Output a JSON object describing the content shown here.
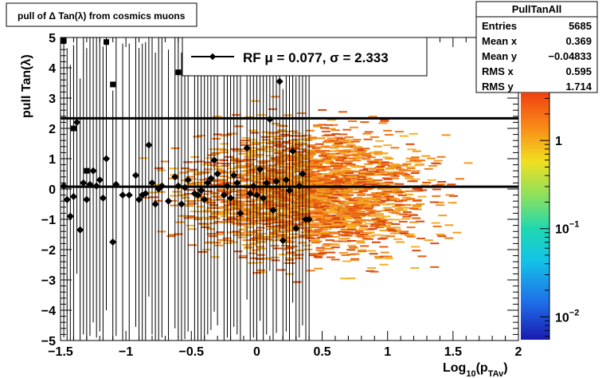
{
  "chart_data": {
    "type": "heatmap",
    "title": "pull of Δ Tan(λ) from cosmics muons",
    "xlabel_main": "Log",
    "xlabel_sub": "10",
    "xlabel_paren": "(p",
    "xlabel_sub2": "TAv",
    "xlabel_close": ")",
    "ylabel": "pull Tan(λ)",
    "xlim": [
      -1.5,
      2.0
    ],
    "ylim": [
      -5,
      5
    ],
    "x_ticks": [
      {
        "value": -1.5,
        "label": "−1.5"
      },
      {
        "value": -1.0,
        "label": "−1"
      },
      {
        "value": -0.5,
        "label": "−0.5"
      },
      {
        "value": 0.0,
        "label": "0"
      },
      {
        "value": 0.5,
        "label": "0.5"
      },
      {
        "value": 1.0,
        "label": "1"
      },
      {
        "value": 1.5,
        "label": "1.5"
      },
      {
        "value": 2.0,
        "label": "2"
      }
    ],
    "y_ticks": [
      {
        "value": 5,
        "label": "5"
      },
      {
        "value": 4,
        "label": "4"
      },
      {
        "value": 3,
        "label": "3"
      },
      {
        "value": 2,
        "label": "2"
      },
      {
        "value": 1,
        "label": "1"
      },
      {
        "value": 0,
        "label": "0"
      },
      {
        "value": -1,
        "label": "−1"
      },
      {
        "value": -2,
        "label": "−2"
      },
      {
        "value": -3,
        "label": "−3"
      },
      {
        "value": -4,
        "label": "−4"
      },
      {
        "value": -5,
        "label": "−5"
      }
    ],
    "stats_box": {
      "name": "PullTanAll",
      "rows": [
        {
          "label": "Entries",
          "value": "5685"
        },
        {
          "label": "Mean x",
          "value": "0.369"
        },
        {
          "label": "Mean y",
          "value": "−0.04833"
        },
        {
          "label": "RMS x",
          "value": "0.595"
        },
        {
          "label": "RMS y",
          "value": "1.714"
        }
      ]
    },
    "legend": {
      "entry": "RF μ =  0.077, σ =   2.333",
      "placement": "top-center"
    },
    "fit_mean": 0.077,
    "fit_sigma": 2.333,
    "horizontal_lines": [
      2.333,
      0.077
    ],
    "colorbar": {
      "scale": "log",
      "range": [
        0.0055,
        3.5
      ],
      "labels": [
        {
          "value": 1,
          "base": "1",
          "exp": ""
        },
        {
          "value": 0.1,
          "base": "10",
          "exp": "−1"
        },
        {
          "value": 0.01,
          "base": "10",
          "exp": "−2"
        }
      ]
    },
    "profile_points": [
      {
        "x": -1.475,
        "y": 0.1,
        "err": 5
      },
      {
        "x": -1.45,
        "y": -0.35,
        "err": 5
      },
      {
        "x": -1.425,
        "y": -0.9,
        "err": 5
      },
      {
        "x": -1.4,
        "y": -0.25,
        "err": 5
      },
      {
        "x": -1.375,
        "y": 2.2,
        "err": 5
      },
      {
        "x": -1.35,
        "y": -1.35,
        "err": 5
      },
      {
        "x": -1.325,
        "y": 0.2,
        "err": 5
      },
      {
        "x": -1.3,
        "y": -0.35,
        "err": 5
      },
      {
        "x": -1.275,
        "y": 0.15,
        "err": 5
      },
      {
        "x": -1.25,
        "y": 0.6,
        "err": 5
      },
      {
        "x": -1.225,
        "y": 0.1,
        "err": 5
      },
      {
        "x": -1.2,
        "y": 0.3,
        "err": 5
      },
      {
        "x": -1.175,
        "y": -0.3,
        "err": 5
      },
      {
        "x": -1.15,
        "y": 1.0,
        "err": 5
      },
      {
        "x": -1.1,
        "y": -1.75,
        "err": 5
      },
      {
        "x": -1.075,
        "y": 0.15,
        "err": 5
      },
      {
        "x": -1.025,
        "y": -0.2,
        "err": 5
      },
      {
        "x": -0.975,
        "y": -0.2,
        "err": 5
      },
      {
        "x": -0.925,
        "y": 0.45,
        "err": 5
      },
      {
        "x": -0.9,
        "y": -0.35,
        "err": 5
      },
      {
        "x": -0.875,
        "y": -0.2,
        "err": 5
      },
      {
        "x": -0.85,
        "y": -0.15,
        "err": 5
      },
      {
        "x": -0.825,
        "y": 1.45,
        "err": 5
      },
      {
        "x": -0.8,
        "y": 0.2,
        "err": 5
      },
      {
        "x": -0.775,
        "y": -0.5,
        "err": 5
      },
      {
        "x": -0.75,
        "y": 0.0,
        "err": 5
      },
      {
        "x": -0.725,
        "y": 0.1,
        "err": 5
      },
      {
        "x": -0.675,
        "y": -0.4,
        "err": 5
      },
      {
        "x": -0.625,
        "y": 0.4,
        "err": 5
      },
      {
        "x": -0.6,
        "y": 0.1,
        "err": 5
      },
      {
        "x": -0.575,
        "y": -0.5,
        "err": 5
      },
      {
        "x": -0.55,
        "y": 0.05,
        "err": 5
      },
      {
        "x": -0.525,
        "y": 0.3,
        "err": 5
      },
      {
        "x": -0.475,
        "y": -0.15,
        "err": 5
      },
      {
        "x": -0.45,
        "y": -0.2,
        "err": 5
      },
      {
        "x": -0.425,
        "y": -0.05,
        "err": 5
      },
      {
        "x": -0.4,
        "y": -0.35,
        "err": 5
      },
      {
        "x": -0.375,
        "y": 0.2,
        "err": 5
      },
      {
        "x": -0.35,
        "y": 0.35,
        "err": 5
      },
      {
        "x": -0.325,
        "y": 0.95,
        "err": 5
      },
      {
        "x": -0.3,
        "y": 0.5,
        "err": 5
      },
      {
        "x": -0.25,
        "y": -0.2,
        "err": 5
      },
      {
        "x": -0.225,
        "y": 0.1,
        "err": 5
      },
      {
        "x": -0.2,
        "y": -0.3,
        "err": 5
      },
      {
        "x": -0.175,
        "y": 0.45,
        "err": 5
      },
      {
        "x": -0.15,
        "y": 0.2,
        "err": 5
      },
      {
        "x": -0.125,
        "y": -0.8,
        "err": 5
      },
      {
        "x": -0.075,
        "y": 1.35,
        "err": 5
      },
      {
        "x": -0.05,
        "y": -0.15,
        "err": 5
      },
      {
        "x": -0.025,
        "y": 0.1,
        "err": 5
      },
      {
        "x": 0.0,
        "y": -0.2,
        "err": 5
      },
      {
        "x": 0.025,
        "y": 0.65,
        "err": 5
      },
      {
        "x": 0.05,
        "y": -0.3,
        "err": 5
      },
      {
        "x": 0.075,
        "y": 0.2,
        "err": 5
      },
      {
        "x": 0.1,
        "y": 2.3,
        "err": 5
      },
      {
        "x": 0.125,
        "y": -0.7,
        "err": 5
      },
      {
        "x": 0.15,
        "y": 0.25,
        "err": 5
      },
      {
        "x": 0.175,
        "y": 3.55,
        "err": 5
      },
      {
        "x": 0.2,
        "y": -1.7,
        "err": 5
      },
      {
        "x": 0.225,
        "y": 0.3,
        "err": 5
      },
      {
        "x": 0.25,
        "y": -0.05,
        "err": 5
      },
      {
        "x": 0.275,
        "y": 1.25,
        "err": 5
      },
      {
        "x": 0.3,
        "y": -1.3,
        "err": 5
      },
      {
        "x": 0.325,
        "y": 0.1,
        "err": 5
      },
      {
        "x": 0.35,
        "y": 0.5,
        "err": 5
      },
      {
        "x": 0.375,
        "y": -1.0,
        "err": 5
      },
      {
        "x": 0.4,
        "y": -1.0,
        "err": 5
      }
    ],
    "outlier_points": [
      {
        "x": -1.475,
        "y": 4.9
      },
      {
        "x": -1.4,
        "y": 2.0
      },
      {
        "x": -1.15,
        "y": 4.85
      },
      {
        "x": -1.1,
        "y": 3.45
      },
      {
        "x": -1.3,
        "y": 0.6
      },
      {
        "x": -0.6,
        "y": 3.85
      }
    ]
  }
}
